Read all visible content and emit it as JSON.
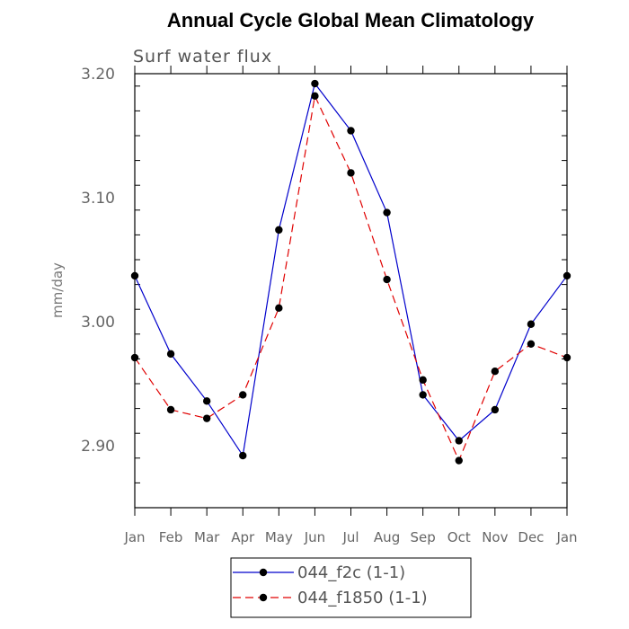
{
  "chart_data": {
    "type": "line",
    "title": "Annual Cycle Global Mean Climatology",
    "subtitle": "Surf water flux",
    "xlabel": "",
    "ylabel": "mm/day",
    "categories": [
      "Jan",
      "Feb",
      "Mar",
      "Apr",
      "May",
      "Jun",
      "Jul",
      "Aug",
      "Sep",
      "Oct",
      "Nov",
      "Dec",
      "Jan"
    ],
    "ylim": [
      2.85,
      3.2
    ],
    "yticks": [
      2.9,
      3.0,
      3.1,
      3.2
    ],
    "ytick_labels": [
      "2.90",
      "3.00",
      "3.10",
      "3.20"
    ],
    "series": [
      {
        "name": "044_f2c (1-1)",
        "color": "#0000cc",
        "dash": "solid",
        "values": [
          3.037,
          2.974,
          2.936,
          2.892,
          3.074,
          3.192,
          3.154,
          3.088,
          2.941,
          2.904,
          2.929,
          2.998,
          3.037
        ]
      },
      {
        "name": "044_f1850 (1-1)",
        "color": "#e00000",
        "dash": "dashed",
        "values": [
          2.971,
          2.929,
          2.922,
          2.941,
          3.011,
          3.182,
          3.12,
          3.034,
          2.953,
          2.888,
          2.96,
          2.982,
          2.971
        ]
      }
    ],
    "legend_position": "bottom"
  }
}
